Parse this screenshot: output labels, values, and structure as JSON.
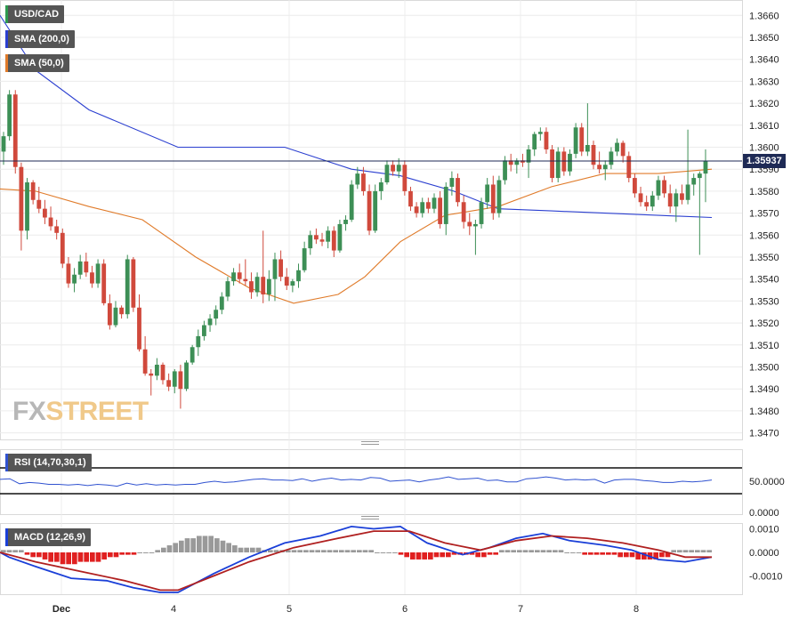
{
  "header": {
    "symbol_label": "USD/CAD",
    "sma200_label": "SMA (200,0)",
    "sma50_label": "SMA (50,0)",
    "rsi_label": "RSI (14,70,30,1)",
    "macd_label": "MACD (12,26,9)",
    "current_price": "1.35937"
  },
  "logo": {
    "part1": "FX",
    "part2": "STREET"
  },
  "colors": {
    "up": "#3d8f56",
    "down": "#d0493c",
    "sma200": "#2b3fd0",
    "sma50": "#e07b2a",
    "rsi_line": "#3052d0",
    "macd_line": "#1a3fd8",
    "signal_line": "#b02020",
    "hist_pos": "#999999",
    "hist_neg": "#e02020",
    "price_line": "#1e2a55"
  },
  "chart_data": [
    {
      "type": "candlestick",
      "pair": "USD/CAD",
      "timeframe_bars": "hourly (approx.)",
      "x_tick_labels": [
        "Dec",
        "4",
        "5",
        "6",
        "7",
        "8"
      ],
      "y_tick_labels": [
        "1.3470",
        "1.3480",
        "1.3490",
        "1.3500",
        "1.3510",
        "1.3520",
        "1.3530",
        "1.3540",
        "1.3550",
        "1.3560",
        "1.3570",
        "1.3580",
        "1.3590",
        "1.3600",
        "1.3610",
        "1.3620",
        "1.3630",
        "1.3640",
        "1.3650",
        "1.3660"
      ],
      "ylim": [
        1.3467,
        1.3667
      ],
      "last_price": 1.35937,
      "candles": [
        [
          1.3598,
          1.3607,
          1.3592,
          1.3605
        ],
        [
          1.3605,
          1.3626,
          1.3603,
          1.3624
        ],
        [
          1.3624,
          1.3626,
          1.3588,
          1.3591
        ],
        [
          1.3591,
          1.3593,
          1.3553,
          1.3562
        ],
        [
          1.3562,
          1.3586,
          1.3558,
          1.3584
        ],
        [
          1.3584,
          1.3585,
          1.3574,
          1.3576
        ],
        [
          1.3576,
          1.3582,
          1.357,
          1.3572
        ],
        [
          1.3572,
          1.3576,
          1.3565,
          1.3568
        ],
        [
          1.3568,
          1.3573,
          1.3562,
          1.3564
        ],
        [
          1.3564,
          1.3567,
          1.3558,
          1.3561
        ],
        [
          1.3561,
          1.3563,
          1.3545,
          1.3547
        ],
        [
          1.3547,
          1.355,
          1.3536,
          1.3538
        ],
        [
          1.3538,
          1.3545,
          1.3534,
          1.3542
        ],
        [
          1.3542,
          1.3551,
          1.354,
          1.3548
        ],
        [
          1.3548,
          1.3552,
          1.3541,
          1.3543
        ],
        [
          1.3543,
          1.3546,
          1.3536,
          1.3538
        ],
        [
          1.3538,
          1.3549,
          1.3536,
          1.3547
        ],
        [
          1.3547,
          1.3549,
          1.3528,
          1.3529
        ],
        [
          1.3529,
          1.3533,
          1.3517,
          1.3519
        ],
        [
          1.3519,
          1.353,
          1.3518,
          1.3527
        ],
        [
          1.3527,
          1.3528,
          1.3522,
          1.3524
        ],
        [
          1.3524,
          1.3551,
          1.3522,
          1.3549
        ],
        [
          1.3549,
          1.355,
          1.3525,
          1.3527
        ],
        [
          1.3527,
          1.3533,
          1.3507,
          1.3508
        ],
        [
          1.3508,
          1.3514,
          1.3496,
          1.3497
        ],
        [
          1.3497,
          1.3499,
          1.3487,
          1.3496
        ],
        [
          1.3496,
          1.3504,
          1.3494,
          1.3501
        ],
        [
          1.3501,
          1.3502,
          1.3492,
          1.3494
        ],
        [
          1.3494,
          1.3497,
          1.3489,
          1.3491
        ],
        [
          1.3491,
          1.3499,
          1.3488,
          1.3498
        ],
        [
          1.3498,
          1.3501,
          1.3481,
          1.349
        ],
        [
          1.349,
          1.3503,
          1.3489,
          1.3502
        ],
        [
          1.3502,
          1.351,
          1.3501,
          1.3509
        ],
        [
          1.3509,
          1.3517,
          1.3505,
          1.3514
        ],
        [
          1.3514,
          1.3521,
          1.3512,
          1.3519
        ],
        [
          1.3519,
          1.3524,
          1.3516,
          1.3522
        ],
        [
          1.3522,
          1.3528,
          1.3519,
          1.3526
        ],
        [
          1.3526,
          1.3534,
          1.3524,
          1.3532
        ],
        [
          1.3532,
          1.3541,
          1.353,
          1.3539
        ],
        [
          1.3539,
          1.3545,
          1.3537,
          1.3543
        ],
        [
          1.3543,
          1.3547,
          1.3538,
          1.354
        ],
        [
          1.354,
          1.3549,
          1.3537,
          1.3539
        ],
        [
          1.3539,
          1.3543,
          1.3531,
          1.3534
        ],
        [
          1.3534,
          1.3543,
          1.3532,
          1.3541
        ],
        [
          1.3541,
          1.3562,
          1.3529,
          1.3533
        ],
        [
          1.3533,
          1.3544,
          1.353,
          1.354
        ],
        [
          1.354,
          1.3552,
          1.353,
          1.3549
        ],
        [
          1.3549,
          1.3553,
          1.3539,
          1.3541
        ],
        [
          1.3541,
          1.3545,
          1.3535,
          1.3537
        ],
        [
          1.3537,
          1.354,
          1.3534,
          1.3539
        ],
        [
          1.3539,
          1.3547,
          1.3536,
          1.3544
        ],
        [
          1.3544,
          1.3557,
          1.3543,
          1.3554
        ],
        [
          1.3554,
          1.3562,
          1.3551,
          1.356
        ],
        [
          1.356,
          1.3563,
          1.3556,
          1.3558
        ],
        [
          1.3558,
          1.3561,
          1.3555,
          1.3557
        ],
        [
          1.3557,
          1.3564,
          1.3554,
          1.3562
        ],
        [
          1.3562,
          1.3564,
          1.355,
          1.3553
        ],
        [
          1.3553,
          1.3567,
          1.3552,
          1.3565
        ],
        [
          1.3565,
          1.3569,
          1.3562,
          1.3567
        ],
        [
          1.3567,
          1.3585,
          1.3566,
          1.3583
        ],
        [
          1.3583,
          1.3591,
          1.3581,
          1.3588
        ],
        [
          1.3588,
          1.3591,
          1.3578,
          1.358
        ],
        [
          1.358,
          1.3583,
          1.356,
          1.3562
        ],
        [
          1.3562,
          1.3583,
          1.3561,
          1.358
        ],
        [
          1.358,
          1.3586,
          1.3576,
          1.3584
        ],
        [
          1.3584,
          1.3594,
          1.3583,
          1.3592
        ],
        [
          1.3592,
          1.3594,
          1.3587,
          1.3589
        ],
        [
          1.3589,
          1.3595,
          1.3586,
          1.3592
        ],
        [
          1.3592,
          1.3594,
          1.3578,
          1.358
        ],
        [
          1.358,
          1.3582,
          1.3571,
          1.3573
        ],
        [
          1.3573,
          1.3575,
          1.3568,
          1.357
        ],
        [
          1.357,
          1.3577,
          1.3568,
          1.3575
        ],
        [
          1.3575,
          1.3577,
          1.357,
          1.3572
        ],
        [
          1.3572,
          1.3579,
          1.357,
          1.3577
        ],
        [
          1.3577,
          1.358,
          1.3563,
          1.3565
        ],
        [
          1.3565,
          1.3584,
          1.356,
          1.3582
        ],
        [
          1.3582,
          1.3589,
          1.3578,
          1.3586
        ],
        [
          1.3586,
          1.3588,
          1.3573,
          1.3575
        ],
        [
          1.3575,
          1.3578,
          1.3563,
          1.3566
        ],
        [
          1.3566,
          1.357,
          1.356,
          1.3564
        ],
        [
          1.3564,
          1.3567,
          1.3551,
          1.3565
        ],
        [
          1.3565,
          1.3577,
          1.3563,
          1.3575
        ],
        [
          1.3575,
          1.3586,
          1.3572,
          1.3583
        ],
        [
          1.3583,
          1.3587,
          1.3567,
          1.357
        ],
        [
          1.357,
          1.3587,
          1.3568,
          1.3585
        ],
        [
          1.3585,
          1.3596,
          1.3583,
          1.3594
        ],
        [
          1.3594,
          1.3597,
          1.3589,
          1.3592
        ],
        [
          1.3592,
          1.3595,
          1.3588,
          1.3594
        ],
        [
          1.3594,
          1.3597,
          1.3591,
          1.3593
        ],
        [
          1.3593,
          1.3601,
          1.3586,
          1.3599
        ],
        [
          1.3599,
          1.3607,
          1.3596,
          1.3606
        ],
        [
          1.3606,
          1.3609,
          1.3603,
          1.3607
        ],
        [
          1.3607,
          1.3609,
          1.3597,
          1.3599
        ],
        [
          1.3599,
          1.3601,
          1.3584,
          1.3586
        ],
        [
          1.3586,
          1.36,
          1.3584,
          1.3598
        ],
        [
          1.3598,
          1.36,
          1.3587,
          1.3589
        ],
        [
          1.3589,
          1.3599,
          1.3587,
          1.3597
        ],
        [
          1.3597,
          1.3611,
          1.3595,
          1.3609
        ],
        [
          1.3609,
          1.3611,
          1.3596,
          1.3598
        ],
        [
          1.3598,
          1.362,
          1.3596,
          1.3601
        ],
        [
          1.3601,
          1.3603,
          1.359,
          1.3592
        ],
        [
          1.3592,
          1.3598,
          1.3588,
          1.359
        ],
        [
          1.359,
          1.3594,
          1.3585,
          1.3592
        ],
        [
          1.3592,
          1.36,
          1.359,
          1.3598
        ],
        [
          1.3598,
          1.3604,
          1.3596,
          1.3602
        ],
        [
          1.3602,
          1.3603,
          1.3593,
          1.3596
        ],
        [
          1.3596,
          1.3598,
          1.3584,
          1.3586
        ],
        [
          1.3586,
          1.3588,
          1.3577,
          1.3579
        ],
        [
          1.3579,
          1.3582,
          1.3573,
          1.3575
        ],
        [
          1.3575,
          1.3578,
          1.3571,
          1.3573
        ],
        [
          1.3573,
          1.358,
          1.3571,
          1.3578
        ],
        [
          1.3578,
          1.3587,
          1.3576,
          1.3585
        ],
        [
          1.3585,
          1.3587,
          1.3577,
          1.3579
        ],
        [
          1.3579,
          1.3583,
          1.357,
          1.3573
        ],
        [
          1.3573,
          1.3581,
          1.3566,
          1.3579
        ],
        [
          1.3579,
          1.3583,
          1.3574,
          1.3576
        ],
        [
          1.3576,
          1.3608,
          1.3574,
          1.3583
        ],
        [
          1.3583,
          1.3588,
          1.3578,
          1.3586
        ],
        [
          1.3586,
          1.3589,
          1.3551,
          1.3588
        ],
        [
          1.3588,
          1.3599,
          1.3575,
          1.35937
        ]
      ],
      "sma200": [
        [
          0,
          1.366
        ],
        [
          40,
          1.3635
        ],
        [
          100,
          1.3617
        ],
        [
          200,
          1.36
        ],
        [
          320,
          1.36
        ],
        [
          395,
          1.359
        ],
        [
          450,
          1.3587
        ],
        [
          510,
          1.358
        ],
        [
          560,
          1.3572
        ],
        [
          620,
          1.3571
        ],
        [
          680,
          1.357
        ],
        [
          740,
          1.3569
        ],
        [
          800,
          1.3568
        ]
      ],
      "sma50": [
        [
          0,
          1.3581
        ],
        [
          40,
          1.358
        ],
        [
          100,
          1.3573
        ],
        [
          160,
          1.3567
        ],
        [
          220,
          1.355
        ],
        [
          280,
          1.3536
        ],
        [
          330,
          1.3529
        ],
        [
          380,
          1.3533
        ],
        [
          410,
          1.3541
        ],
        [
          450,
          1.3557
        ],
        [
          500,
          1.3569
        ],
        [
          560,
          1.3573
        ],
        [
          620,
          1.3582
        ],
        [
          680,
          1.3588
        ],
        [
          740,
          1.3588
        ],
        [
          800,
          1.359
        ]
      ]
    },
    {
      "type": "line",
      "indicator": "RSI (14,70,30,1)",
      "y_tick_labels": [
        "50.0000",
        "0.0000"
      ],
      "values": [
        53,
        54,
        46,
        48,
        47,
        45,
        45,
        44,
        45,
        43,
        45,
        44,
        42,
        47,
        44,
        46,
        44,
        45,
        44,
        45,
        45,
        48,
        50,
        48,
        49,
        51,
        53,
        54,
        52,
        52,
        51,
        54,
        50,
        53,
        55,
        52,
        53,
        52,
        56,
        55,
        50,
        51,
        52,
        49,
        52,
        54,
        57,
        53,
        54,
        55,
        51,
        52,
        49,
        49,
        54,
        55,
        57,
        55,
        52,
        53,
        52,
        53,
        47,
        52,
        53,
        53,
        51,
        50,
        48,
        48,
        50,
        49,
        50,
        52
      ]
    },
    {
      "type": "bar+line",
      "indicator": "MACD (12,26,9)",
      "y_tick_labels": [
        "0.0010",
        "0.0000",
        "-0.0010"
      ],
      "ylim": [
        -0.0014,
        0.0012
      ],
      "macd": [
        [
          0,
          0.0
        ],
        [
          10,
          -0.0002
        ],
        [
          40,
          -0.0006
        ],
        [
          80,
          -0.0011
        ],
        [
          120,
          -0.0012
        ],
        [
          150,
          -0.0015
        ],
        [
          180,
          -0.0017
        ],
        [
          200,
          -0.0017
        ],
        [
          215,
          -0.0014
        ],
        [
          240,
          -0.0009
        ],
        [
          280,
          -0.0002
        ],
        [
          320,
          0.0004
        ],
        [
          360,
          0.0007
        ],
        [
          395,
          0.0011
        ],
        [
          420,
          0.001
        ],
        [
          450,
          0.0011
        ],
        [
          480,
          0.0004
        ],
        [
          520,
          -0.0001
        ],
        [
          550,
          0.0002
        ],
        [
          580,
          0.0006
        ],
        [
          610,
          0.0008
        ],
        [
          640,
          0.0005
        ],
        [
          680,
          0.0003
        ],
        [
          710,
          0.0001
        ],
        [
          740,
          -0.0003
        ],
        [
          770,
          -0.0004
        ],
        [
          800,
          -0.0002
        ]
      ],
      "signal": [
        [
          0,
          0.0
        ],
        [
          40,
          -0.0004
        ],
        [
          90,
          -0.0008
        ],
        [
          140,
          -0.0012
        ],
        [
          180,
          -0.0016
        ],
        [
          200,
          -0.0016
        ],
        [
          240,
          -0.001
        ],
        [
          280,
          -0.0004
        ],
        [
          330,
          0.0002
        ],
        [
          380,
          0.0006
        ],
        [
          420,
          0.0009
        ],
        [
          460,
          0.0009
        ],
        [
          500,
          0.0004
        ],
        [
          540,
          0.0001
        ],
        [
          580,
          0.0005
        ],
        [
          620,
          0.0007
        ],
        [
          660,
          0.0006
        ],
        [
          700,
          0.0004
        ],
        [
          740,
          0.0001
        ],
        [
          770,
          -0.0002
        ],
        [
          800,
          -0.0002
        ]
      ],
      "histogram": [
        0.0001,
        0.0001,
        0.0001,
        0.0001,
        -0.0001,
        -0.0002,
        -0.0002,
        -0.0003,
        -0.0004,
        -0.0004,
        -0.0005,
        -0.0005,
        -0.0005,
        -0.0004,
        -0.0004,
        -0.0004,
        -0.0004,
        -0.0003,
        -0.0002,
        -0.0002,
        -0.0001,
        -0.0001,
        -0.0001,
        0.0,
        0.0,
        0.0,
        0.0001,
        0.0002,
        0.0003,
        0.0004,
        0.0005,
        0.0006,
        0.0006,
        0.0007,
        0.0007,
        0.0007,
        0.0006,
        0.0005,
        0.0004,
        0.0003,
        0.0002,
        0.0002,
        0.0002,
        0.0002,
        0.0001,
        0.0001,
        0.0001,
        0.0001,
        0.0001,
        0.0001,
        0.0001,
        0.0001,
        0.0001,
        0.0001,
        0.0001,
        0.0001,
        0.0001,
        0.0001,
        0.0001,
        0.0001,
        0.0001,
        0.0001,
        0.0001,
        0.0,
        0.0,
        0.0,
        0.0,
        -0.0001,
        -0.0002,
        -0.0003,
        -0.0003,
        -0.0003,
        -0.0003,
        -0.0002,
        -0.0002,
        -0.0002,
        -0.0001,
        -0.0001,
        -0.0001,
        -0.0001,
        -0.0002,
        -0.0002,
        -0.0001,
        -0.0001,
        0.0001,
        0.0001,
        0.0001,
        0.0001,
        0.0001,
        0.0001,
        0.0001,
        0.0001,
        0.0001,
        0.0001,
        0.0001,
        0.0,
        0.0,
        0.0,
        -0.0001,
        -0.0001,
        -0.0001,
        -0.0001,
        -0.0001,
        -0.0001,
        -0.0002,
        -0.0002,
        -0.0002,
        -0.0003,
        -0.0003,
        -0.0003,
        -0.0003,
        -0.0002,
        -0.0002,
        0.0001,
        0.0001,
        0.0001,
        0.0001,
        0.0001,
        0.0001,
        0.0001
      ]
    }
  ]
}
